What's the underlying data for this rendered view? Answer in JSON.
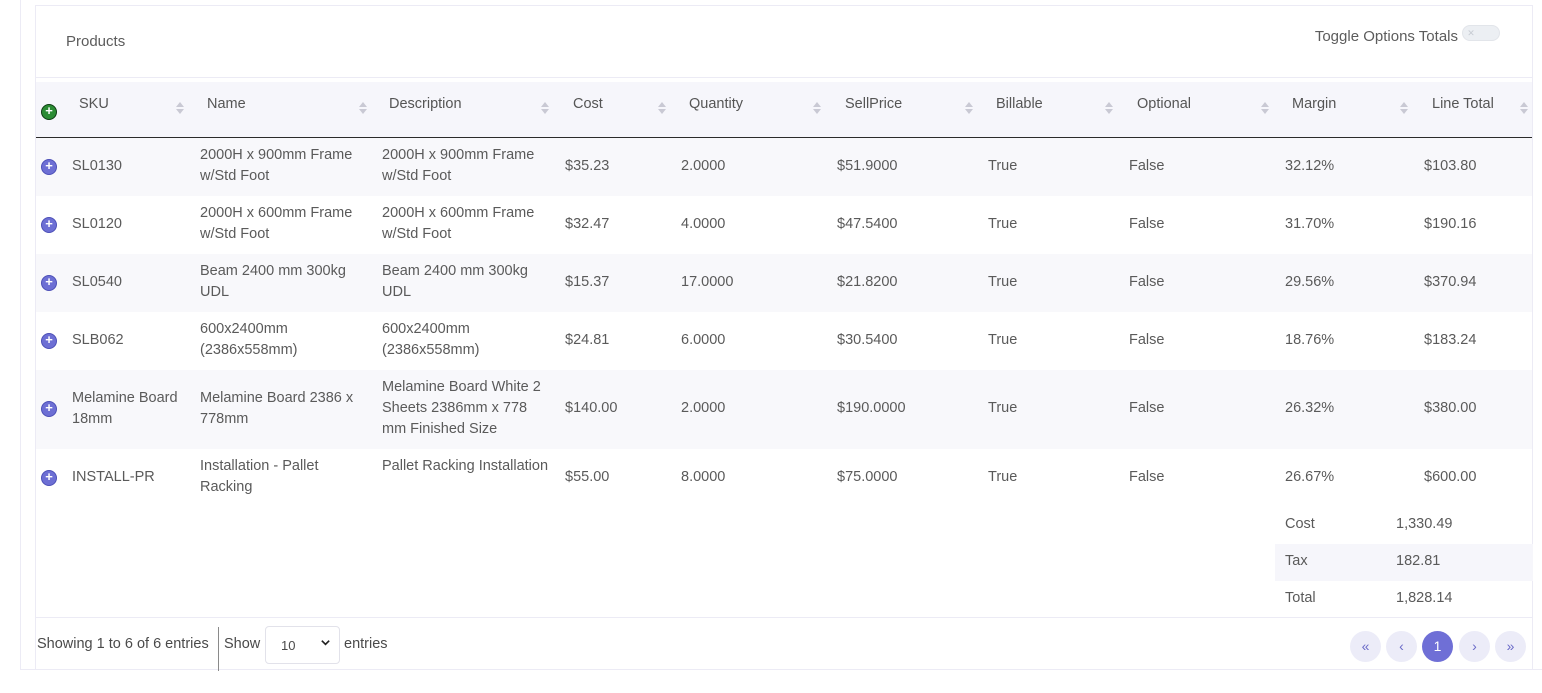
{
  "card": {
    "title": "Products",
    "toggle_label": "Toggle Options Totals",
    "toggle_icon": "✕"
  },
  "columns": [
    "SKU",
    "Name",
    "Description",
    "Cost",
    "Quantity",
    "SellPrice",
    "Billable",
    "Optional",
    "Margin",
    "Line Total"
  ],
  "rows": [
    {
      "sku": "SL0130",
      "name": "2000H x 900mm Frame w/Std Foot",
      "description": "2000H x 900mm Frame w/Std Foot",
      "cost": "$35.23",
      "quantity": "2.0000",
      "sellprice": "$51.9000",
      "billable": "True",
      "optional": "False",
      "margin": "32.12%",
      "line_total": "$103.80"
    },
    {
      "sku": "SL0120",
      "name": "2000H x 600mm Frame w/Std Foot",
      "description": "2000H x 600mm Frame w/Std Foot",
      "cost": "$32.47",
      "quantity": "4.0000",
      "sellprice": "$47.5400",
      "billable": "True",
      "optional": "False",
      "margin": "31.70%",
      "line_total": "$190.16"
    },
    {
      "sku": "SL0540",
      "name": "Beam 2400 mm 300kg UDL",
      "description": "Beam 2400 mm 300kg UDL",
      "cost": "$15.37",
      "quantity": "17.0000",
      "sellprice": "$21.8200",
      "billable": "True",
      "optional": "False",
      "margin": "29.56%",
      "line_total": "$370.94"
    },
    {
      "sku": "SLB062",
      "name": "600x2400mm (2386x558mm)",
      "description": "600x2400mm (2386x558mm)",
      "cost": "$24.81",
      "quantity": "6.0000",
      "sellprice": "$30.5400",
      "billable": "True",
      "optional": "False",
      "margin": "18.76%",
      "line_total": "$183.24"
    },
    {
      "sku": "Melamine Board 18mm",
      "name": "Melamine Board 2386 x 778mm",
      "description": "Melamine Board White 2 Sheets 2386mm x 778 mm Finished Size",
      "cost": "$140.00",
      "quantity": "2.0000",
      "sellprice": "$190.0000",
      "billable": "True",
      "optional": "False",
      "margin": "26.32%",
      "line_total": "$380.00"
    },
    {
      "sku": "INSTALL-PR",
      "name": "Installation - Pallet Racking",
      "description": "Pallet Racking Installation",
      "cost": "$55.00",
      "quantity": "8.0000",
      "sellprice": "$75.0000",
      "billable": "True",
      "optional": "False",
      "margin": "26.67%",
      "line_total": "$600.00"
    }
  ],
  "totals": [
    {
      "label": "Cost",
      "value": "1,330.49"
    },
    {
      "label": "Tax",
      "value": "182.81"
    },
    {
      "label": "Total",
      "value": "1,828.14"
    }
  ],
  "footer": {
    "showing": "Showing 1 to 6 of 6 entries",
    "show_label": "Show",
    "page_size": "10",
    "entries_label": "entries"
  },
  "pagination": {
    "first": "«",
    "prev": "‹",
    "current": "1",
    "next": "›",
    "last": "»"
  },
  "icons": {
    "add_all": "+",
    "expand": "+"
  }
}
